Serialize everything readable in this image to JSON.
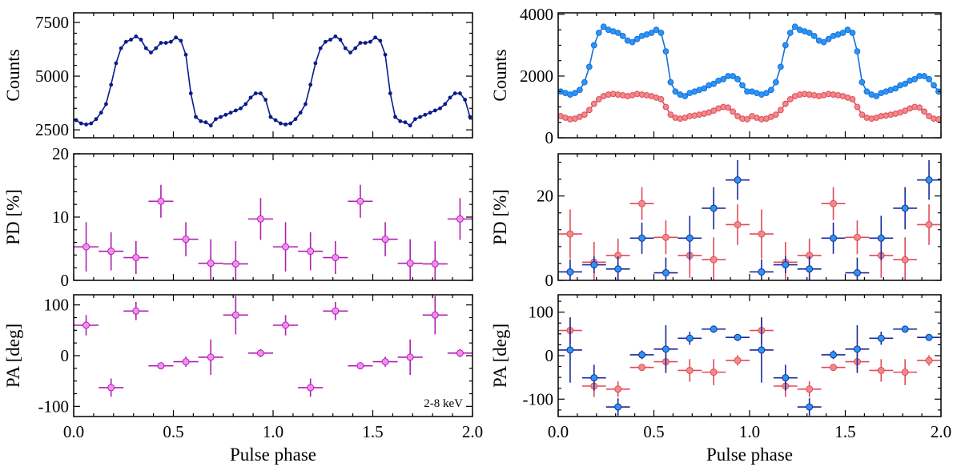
{
  "chart_data": [
    {
      "type": "line",
      "panel": "left-counts",
      "ylabel": "Counts",
      "xlim": [
        0,
        2.0
      ],
      "ylim": [
        2130,
        7950
      ],
      "yticks": [
        2500,
        5000,
        7500
      ],
      "x_step": 0.025,
      "series": [
        {
          "name": "2-8 keV",
          "color": "#0a1a8a",
          "values": [
            2950,
            2800,
            2750,
            2800,
            3000,
            3300,
            3700,
            4600,
            5600,
            6300,
            6600,
            6700,
            6850,
            6700,
            6300,
            6100,
            6300,
            6550,
            6550,
            6600,
            6800,
            6650,
            6000,
            4200,
            3100,
            2900,
            2850,
            2700,
            3000,
            3100,
            3200,
            3300,
            3400,
            3500,
            3700,
            4000,
            4200,
            4200,
            3900,
            3100,
            2950,
            2800,
            2750,
            2800,
            3000,
            3300,
            3700,
            4600,
            5600,
            6300,
            6600,
            6700,
            6850,
            6700,
            6300,
            6100,
            6300,
            6550,
            6550,
            6600,
            6800,
            6650,
            6000,
            4200,
            3100,
            2900,
            2850,
            2700,
            3000,
            3100,
            3200,
            3300,
            3400,
            3500,
            3700,
            4000,
            4200,
            4200,
            3900,
            3100
          ]
        }
      ]
    },
    {
      "type": "scatter",
      "panel": "left-pd",
      "ylabel": "PD [%]",
      "xlim": [
        0,
        2.0
      ],
      "ylim": [
        0,
        20
      ],
      "yticks": [
        0,
        10,
        20
      ],
      "x_halfwidth": 0.0625,
      "x": [
        0.0625,
        0.1875,
        0.3125,
        0.4375,
        0.5625,
        0.6875,
        0.8125,
        0.9375,
        1.0625,
        1.1875,
        1.3125,
        1.4375,
        1.5625,
        1.6875,
        1.8125,
        1.9375
      ],
      "series": [
        {
          "name": "2-8 keV",
          "color": "#b020b0",
          "face": "#f58cf5",
          "values": [
            5.3,
            4.6,
            3.6,
            12.5,
            6.5,
            2.7,
            2.6,
            9.7,
            5.3,
            4.6,
            3.6,
            12.5,
            6.5,
            2.7,
            2.6,
            9.7
          ],
          "errors": [
            3.9,
            3.0,
            2.6,
            2.6,
            2.7,
            3.8,
            3.6,
            3.3,
            3.9,
            3.0,
            2.6,
            2.6,
            2.7,
            3.8,
            3.6,
            3.3
          ]
        }
      ]
    },
    {
      "type": "scatter",
      "panel": "left-pa",
      "ylabel": "PA [deg]",
      "xlabel": "Pulse phase",
      "xticks": [
        "0.0",
        "0.5",
        "1.0",
        "1.5",
        "2.0"
      ],
      "xlim": [
        0,
        2.0
      ],
      "ylim": [
        -120,
        120
      ],
      "yticks": [
        -100,
        0,
        100
      ],
      "annotation": "2-8 keV",
      "x_halfwidth": 0.0625,
      "x": [
        0.0625,
        0.1875,
        0.3125,
        0.4375,
        0.5625,
        0.6875,
        0.8125,
        0.9375,
        1.0625,
        1.1875,
        1.3125,
        1.4375,
        1.5625,
        1.6875,
        1.8125,
        1.9375
      ],
      "series": [
        {
          "name": "2-8 keV",
          "color": "#b020b0",
          "face": "#f58cf5",
          "values": [
            60,
            -63,
            88,
            -20,
            -12,
            -3,
            80,
            5,
            60,
            -63,
            88,
            -20,
            -12,
            -3,
            80,
            5
          ],
          "errors": [
            20,
            18,
            18,
            3,
            10,
            35,
            38,
            8,
            20,
            18,
            18,
            3,
            10,
            35,
            38,
            8
          ]
        }
      ]
    },
    {
      "type": "line",
      "panel": "right-counts",
      "ylabel": "Counts",
      "xlim": [
        0,
        2.0
      ],
      "ylim": [
        0,
        4050
      ],
      "yticks": [
        0,
        2000,
        4000
      ],
      "x_step": 0.025,
      "series": [
        {
          "name": "blue",
          "color": "#1a6fd8",
          "face": "#2b95f5",
          "values": [
            1500,
            1450,
            1400,
            1450,
            1550,
            1800,
            2300,
            3000,
            3400,
            3600,
            3500,
            3450,
            3400,
            3300,
            3150,
            3100,
            3200,
            3300,
            3350,
            3400,
            3500,
            3400,
            2800,
            1800,
            1500,
            1400,
            1350,
            1450,
            1500,
            1550,
            1600,
            1700,
            1750,
            1850,
            1900,
            2000,
            2000,
            1900,
            1700,
            1500,
            1500,
            1450,
            1400,
            1450,
            1550,
            1800,
            2300,
            3000,
            3400,
            3600,
            3500,
            3450,
            3400,
            3300,
            3150,
            3100,
            3200,
            3300,
            3350,
            3400,
            3500,
            3400,
            2800,
            1800,
            1500,
            1400,
            1350,
            1450,
            1500,
            1550,
            1600,
            1700,
            1750,
            1850,
            1900,
            2000,
            2000,
            1900,
            1700,
            1500
          ]
        },
        {
          "name": "red",
          "color": "#e04a5a",
          "face": "#f08a8a",
          "values": [
            700,
            650,
            600,
            620,
            680,
            750,
            900,
            1100,
            1250,
            1350,
            1400,
            1420,
            1400,
            1380,
            1350,
            1380,
            1420,
            1400,
            1380,
            1350,
            1300,
            1250,
            1000,
            750,
            650,
            620,
            650,
            700,
            720,
            750,
            780,
            820,
            880,
            950,
            1000,
            980,
            850,
            700,
            620,
            600,
            700,
            650,
            600,
            620,
            680,
            750,
            900,
            1100,
            1250,
            1350,
            1400,
            1420,
            1400,
            1380,
            1350,
            1380,
            1420,
            1400,
            1380,
            1350,
            1300,
            1250,
            1000,
            750,
            650,
            620,
            650,
            700,
            720,
            750,
            780,
            820,
            880,
            950,
            1000,
            980,
            850,
            700,
            620,
            600
          ]
        }
      ]
    },
    {
      "type": "scatter",
      "panel": "right-pd",
      "ylabel": "PD [%]",
      "xlim": [
        0,
        2.0
      ],
      "ylim": [
        0,
        30
      ],
      "yticks": [
        0,
        20
      ],
      "x_halfwidth": 0.0625,
      "x": [
        0.0625,
        0.1875,
        0.3125,
        0.4375,
        0.5625,
        0.6875,
        0.8125,
        0.9375,
        1.0625,
        1.1875,
        1.3125,
        1.4375,
        1.5625,
        1.6875,
        1.8125,
        1.9375
      ],
      "series": [
        {
          "name": "red",
          "color": "#e04a5a",
          "face": "#f08a8a",
          "values": [
            11,
            4.3,
            5.9,
            18.2,
            10.2,
            5.9,
            4.9,
            13.2,
            11,
            4.3,
            5.9,
            18.2,
            10.2,
            5.9,
            4.9,
            13.2
          ],
          "errors": [
            5.8,
            4.8,
            4,
            3.9,
            4,
            5.3,
            5.3,
            4.8,
            5.8,
            4.8,
            4,
            3.9,
            4,
            5.3,
            5.3,
            4.8
          ]
        },
        {
          "name": "blue",
          "color": "#1a2a9a",
          "face": "#2b95f5",
          "values": [
            2.0,
            3.7,
            2.7,
            10,
            1.8,
            10,
            17.1,
            23.8,
            2.0,
            3.7,
            2.7,
            10,
            1.8,
            10,
            17.1,
            23.8
          ],
          "errors": [
            3,
            2,
            3,
            3.7,
            3.6,
            5.3,
            5,
            4.7,
            3,
            2,
            3,
            3.7,
            3.6,
            5.3,
            5,
            4.7
          ]
        }
      ]
    },
    {
      "type": "scatter",
      "panel": "right-pa",
      "ylabel": "PA [deg]",
      "xlabel": "Pulse phase",
      "xticks": [
        "0.0",
        "0.5",
        "1.0",
        "1.5",
        "2.0"
      ],
      "xlim": [
        0,
        2.0
      ],
      "ylim": [
        -140,
        140
      ],
      "yticks": [
        -100,
        0,
        100
      ],
      "x_halfwidth": 0.0625,
      "x": [
        0.0625,
        0.1875,
        0.3125,
        0.4375,
        0.5625,
        0.6875,
        0.8125,
        0.9375,
        1.0625,
        1.1875,
        1.3125,
        1.4375,
        1.5625,
        1.6875,
        1.8125,
        1.9375
      ],
      "series": [
        {
          "name": "red",
          "color": "#e04a5a",
          "face": "#f08a8a",
          "values": [
            58,
            -70,
            -77,
            -27,
            -14,
            -34,
            -38,
            -11,
            58,
            -70,
            -77,
            -27,
            -14,
            -34,
            -38,
            -11
          ],
          "errors": [
            30,
            25,
            18,
            3,
            18,
            26,
            30,
            12,
            30,
            25,
            18,
            3,
            18,
            26,
            30,
            12
          ]
        },
        {
          "name": "blue",
          "color": "#1a2a9a",
          "face": "#2b95f5",
          "values": [
            13,
            -51,
            -118,
            2,
            15,
            40,
            61,
            42,
            13,
            -51,
            -118,
            2,
            15,
            40,
            61,
            42
          ],
          "errors": [
            75,
            30,
            20,
            10,
            55,
            15,
            8,
            3,
            75,
            30,
            20,
            10,
            55,
            15,
            8,
            3
          ]
        }
      ]
    }
  ]
}
